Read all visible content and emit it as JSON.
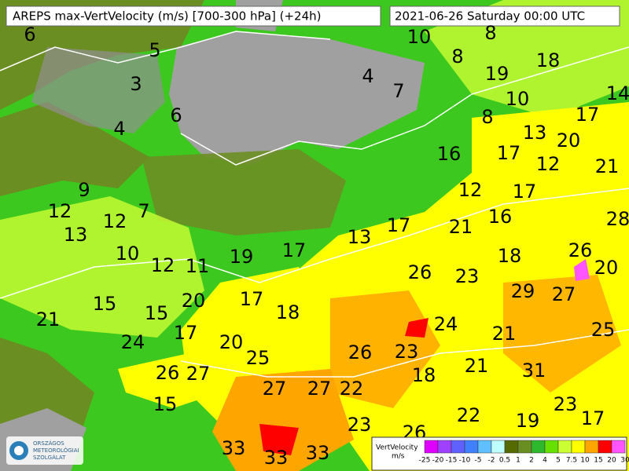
{
  "header": {
    "title": "AREPS max-VertVelocity (m/s) [700-300 hPa] (+24h)",
    "valid_time": "2021-06-26 Saturday 00:00 UTC"
  },
  "map": {
    "labels": [
      6,
      5,
      3,
      6,
      4,
      4,
      7,
      10,
      8,
      8,
      19,
      18,
      10,
      14,
      8,
      17,
      13,
      20,
      16,
      17,
      12,
      21,
      9,
      12,
      7,
      12,
      13,
      12,
      17,
      16,
      28,
      17,
      21,
      13,
      17,
      19,
      10,
      12,
      11,
      18,
      26,
      26,
      23,
      20,
      15,
      20,
      17,
      18,
      29,
      27,
      21,
      15,
      17,
      24,
      21,
      25,
      24,
      20,
      25,
      26,
      23,
      18,
      21,
      31,
      26,
      27,
      27,
      27,
      22,
      15,
      23,
      22,
      19,
      17,
      23,
      26,
      33,
      33,
      33
    ]
  },
  "legend": {
    "title": "VertVelocity",
    "unit": "m/s",
    "ticks": [
      -25,
      -20,
      -15,
      -10,
      -5,
      -2,
      0.5,
      1,
      2,
      4,
      5,
      7.5,
      10,
      15,
      20,
      30
    ],
    "colors": [
      "#e000ff",
      "#a040ff",
      "#6060ff",
      "#4080ff",
      "#60c0ff",
      "#c0ffff",
      "#556b00",
      "#6b8e23",
      "#2eb82e",
      "#66e000",
      "#ccff33",
      "#ffff00",
      "#ffa500",
      "#ff0000",
      "#ff55ff"
    ]
  },
  "logo": {
    "lines": [
      "ORSZÁGOS",
      "METEOROLÓGIAI",
      "SZOLGÁLAT"
    ]
  }
}
